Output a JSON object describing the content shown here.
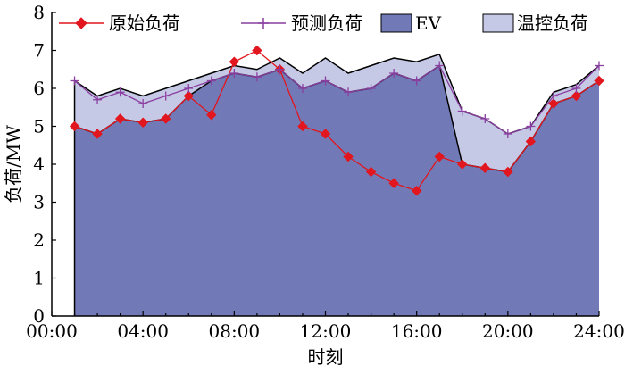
{
  "chart_data": {
    "type": "area",
    "xlabel": "时刻",
    "ylabel": "负荷/MW",
    "ylim": [
      0,
      8
    ],
    "xlim": [
      0,
      24
    ],
    "y_ticks": [
      0,
      1,
      2,
      3,
      4,
      5,
      6,
      7,
      8
    ],
    "x_ticks": [
      {
        "value": 0,
        "label": "00:00"
      },
      {
        "value": 4,
        "label": "04:00"
      },
      {
        "value": 8,
        "label": "08:00"
      },
      {
        "value": 12,
        "label": "12:00"
      },
      {
        "value": 16,
        "label": "16:00"
      },
      {
        "value": 20,
        "label": "20:00"
      },
      {
        "value": 24,
        "label": "24:00"
      }
    ],
    "legend_position": "top",
    "x": [
      1,
      2,
      3,
      4,
      5,
      6,
      7,
      8,
      9,
      10,
      11,
      12,
      13,
      14,
      15,
      16,
      17,
      18,
      19,
      20,
      21,
      22,
      23,
      24
    ],
    "series": [
      {
        "name": "原始负荷",
        "kind": "line",
        "marker": "diamond",
        "color": "#e2161e",
        "values": [
          5.0,
          4.8,
          5.2,
          5.1,
          5.2,
          5.8,
          5.3,
          6.7,
          7.0,
          6.5,
          5.0,
          4.8,
          4.2,
          3.8,
          3.5,
          3.3,
          4.2,
          4.0,
          3.9,
          3.8,
          4.6,
          5.6,
          5.8,
          6.2
        ]
      },
      {
        "name": "预测负荷",
        "kind": "line",
        "marker": "plus",
        "color": "#8a3ea0",
        "values": [
          6.2,
          5.7,
          5.9,
          5.6,
          5.8,
          6.0,
          6.2,
          6.4,
          6.3,
          6.5,
          6.0,
          6.2,
          5.9,
          6.0,
          6.4,
          6.2,
          6.6,
          5.4,
          5.2,
          4.8,
          5.0,
          5.8,
          6.0,
          6.6
        ]
      },
      {
        "name": "EV",
        "kind": "area",
        "color": "#7179b6",
        "values": [
          5.0,
          4.8,
          5.2,
          5.1,
          5.2,
          5.8,
          6.2,
          6.4,
          6.3,
          6.5,
          6.0,
          6.2,
          5.9,
          6.0,
          6.4,
          6.2,
          6.6,
          4.0,
          3.9,
          3.8,
          4.6,
          5.6,
          5.8,
          6.2
        ]
      },
      {
        "name": "温控负荷",
        "kind": "area",
        "color": "#c6c9e6",
        "values": [
          6.2,
          5.8,
          6.0,
          5.8,
          6.0,
          6.2,
          6.4,
          6.6,
          6.5,
          6.8,
          6.4,
          6.8,
          6.4,
          6.6,
          6.8,
          6.7,
          6.9,
          5.4,
          5.2,
          4.8,
          5.0,
          5.9,
          6.1,
          6.6
        ]
      }
    ]
  }
}
